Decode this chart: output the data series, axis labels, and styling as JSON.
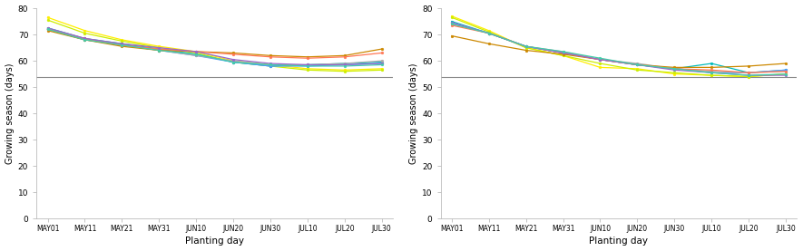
{
  "x_labels": [
    "MAY01",
    "MAY11",
    "MAY21",
    "MAY31",
    "JUN10",
    "JUN20",
    "JUN30",
    "JUL10",
    "JUL20",
    "JUL30"
  ],
  "hline_y": 54,
  "ylim": [
    0,
    80
  ],
  "yticks": [
    0,
    10,
    20,
    30,
    40,
    50,
    60,
    70,
    80
  ],
  "xlabel": "Planting day",
  "ylabel": "Growing season (days)",
  "background_color": "#ffffff",
  "left_panel": {
    "series": [
      {
        "color": "#FFEE00",
        "marker": "o",
        "data": [
          76.5,
          71.5,
          68.0,
          65.5,
          63.5,
          60.0,
          58.5,
          57.0,
          56.5,
          57.0
        ]
      },
      {
        "color": "#CCEE00",
        "marker": "o",
        "data": [
          75.5,
          70.5,
          67.5,
          65.0,
          63.0,
          59.5,
          58.0,
          56.5,
          56.0,
          56.5
        ]
      },
      {
        "color": "#00BBBB",
        "marker": "o",
        "data": [
          72.5,
          68.5,
          66.5,
          64.5,
          62.5,
          59.5,
          58.0,
          58.5,
          59.0,
          59.5
        ]
      },
      {
        "color": "#5599FF",
        "marker": "o",
        "data": [
          72.0,
          68.0,
          66.0,
          64.0,
          62.0,
          59.5,
          58.0,
          58.0,
          58.5,
          59.0
        ]
      },
      {
        "color": "#AAAAAA",
        "marker": "o",
        "data": [
          72.0,
          68.0,
          66.0,
          64.0,
          62.0,
          60.0,
          58.5,
          58.5,
          59.0,
          60.0
        ]
      },
      {
        "color": "#CC8800",
        "marker": "o",
        "data": [
          71.5,
          68.0,
          65.5,
          64.0,
          63.5,
          63.0,
          62.0,
          61.5,
          62.0,
          64.5
        ]
      },
      {
        "color": "#FF7755",
        "marker": "o",
        "data": [
          72.0,
          68.5,
          66.0,
          64.5,
          63.5,
          62.5,
          61.5,
          61.0,
          61.5,
          63.0
        ]
      },
      {
        "color": "#9966CC",
        "marker": "o",
        "data": [
          72.5,
          68.5,
          66.5,
          65.0,
          63.5,
          60.5,
          59.0,
          58.5,
          58.5,
          59.0
        ]
      },
      {
        "color": "#44CCAA",
        "marker": "o",
        "data": [
          72.0,
          68.0,
          66.0,
          64.0,
          62.5,
          59.5,
          58.5,
          58.0,
          58.0,
          58.5
        ]
      }
    ]
  },
  "right_panel": {
    "series": [
      {
        "color": "#FFEE00",
        "marker": "o",
        "data": [
          77.0,
          71.5,
          65.0,
          62.0,
          57.5,
          57.0,
          55.0,
          54.5,
          54.0,
          55.0
        ]
      },
      {
        "color": "#CCEE00",
        "marker": "o",
        "data": [
          76.5,
          71.0,
          65.0,
          62.0,
          59.0,
          56.5,
          55.5,
          54.5,
          54.0,
          55.0
        ]
      },
      {
        "color": "#00BBBB",
        "marker": "o",
        "data": [
          75.0,
          70.5,
          65.5,
          63.0,
          60.5,
          58.5,
          57.0,
          59.0,
          55.5,
          56.5
        ]
      },
      {
        "color": "#5599FF",
        "marker": "o",
        "data": [
          74.5,
          70.5,
          65.5,
          63.0,
          60.5,
          58.5,
          57.0,
          55.5,
          55.5,
          56.5
        ]
      },
      {
        "color": "#AAAAAA",
        "marker": "o",
        "data": [
          74.0,
          70.5,
          65.5,
          63.5,
          60.5,
          59.0,
          57.0,
          56.0,
          55.5,
          56.0
        ]
      },
      {
        "color": "#CC8800",
        "marker": "o",
        "data": [
          69.5,
          66.5,
          64.0,
          62.5,
          60.5,
          58.5,
          57.5,
          57.5,
          58.0,
          59.0
        ]
      },
      {
        "color": "#FF7755",
        "marker": "o",
        "data": [
          73.5,
          70.5,
          65.5,
          63.0,
          60.5,
          58.5,
          57.0,
          56.5,
          55.5,
          56.0
        ]
      },
      {
        "color": "#9966CC",
        "marker": "o",
        "data": [
          74.5,
          70.5,
          65.5,
          63.0,
          60.5,
          58.5,
          56.5,
          55.5,
          54.5,
          54.5
        ]
      },
      {
        "color": "#44CCAA",
        "marker": "o",
        "data": [
          74.0,
          70.5,
          65.5,
          63.5,
          61.0,
          58.5,
          57.0,
          55.5,
          54.5,
          55.0
        ]
      }
    ]
  }
}
